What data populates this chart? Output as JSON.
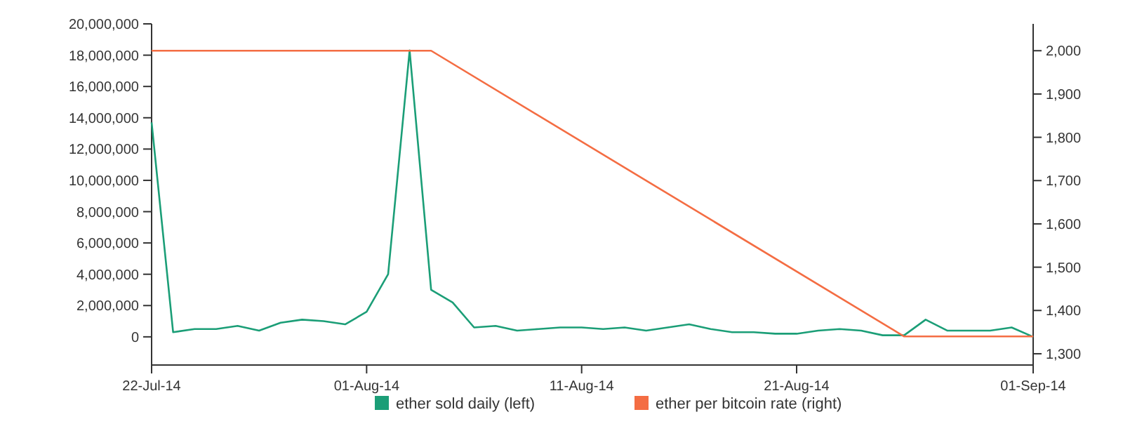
{
  "chart_data": {
    "type": "line",
    "x": [
      "2014-07-22",
      "2014-07-23",
      "2014-07-24",
      "2014-07-25",
      "2014-07-26",
      "2014-07-27",
      "2014-07-28",
      "2014-07-29",
      "2014-07-30",
      "2014-07-31",
      "2014-08-01",
      "2014-08-02",
      "2014-08-03",
      "2014-08-04",
      "2014-08-05",
      "2014-08-06",
      "2014-08-07",
      "2014-08-08",
      "2014-08-09",
      "2014-08-10",
      "2014-08-11",
      "2014-08-12",
      "2014-08-13",
      "2014-08-14",
      "2014-08-15",
      "2014-08-16",
      "2014-08-17",
      "2014-08-18",
      "2014-08-19",
      "2014-08-20",
      "2014-08-21",
      "2014-08-22",
      "2014-08-23",
      "2014-08-24",
      "2014-08-25",
      "2014-08-26",
      "2014-08-27",
      "2014-08-28",
      "2014-08-29",
      "2014-08-30",
      "2014-08-31",
      "2014-09-01"
    ],
    "series": [
      {
        "name": "ether sold daily (left)",
        "color": "#1b9e77",
        "values": [
          13700000,
          300000,
          500000,
          500000,
          700000,
          400000,
          900000,
          1100000,
          1000000,
          800000,
          1600000,
          4000000,
          18300000,
          3000000,
          2200000,
          600000,
          700000,
          400000,
          500000,
          600000,
          600000,
          500000,
          600000,
          400000,
          600000,
          800000,
          500000,
          300000,
          300000,
          200000,
          200000,
          400000,
          500000,
          400000,
          100000,
          100000,
          1100000,
          400000,
          400000,
          400000,
          600000,
          0
        ]
      },
      {
        "name": "ether per bitcoin rate (right)",
        "color": "#f46d43",
        "axis": "y2",
        "x": [
          "2014-07-22",
          "2014-08-04",
          "2014-08-26",
          "2014-09-01"
        ],
        "values": [
          2000,
          2000,
          1340,
          1340
        ]
      }
    ],
    "xlim": [
      "2014-07-22",
      "2014-09-01"
    ],
    "xticks": [
      {
        "value": "2014-07-22",
        "label": "22-Jul-14"
      },
      {
        "value": "2014-08-01",
        "label": "01-Aug-14"
      },
      {
        "value": "2014-08-11",
        "label": "11-Aug-14"
      },
      {
        "value": "2014-08-21",
        "label": "21-Aug-14"
      },
      {
        "value": "2014-09-01",
        "label": "01-Sep-14"
      }
    ],
    "ylim": [
      -1800000,
      20000000
    ],
    "yticks": [
      {
        "value": 0,
        "label": "0"
      },
      {
        "value": 2000000,
        "label": "2,000,000"
      },
      {
        "value": 4000000,
        "label": "4,000,000"
      },
      {
        "value": 6000000,
        "label": "6,000,000"
      },
      {
        "value": 8000000,
        "label": "8,000,000"
      },
      {
        "value": 10000000,
        "label": "10,000,000"
      },
      {
        "value": 12000000,
        "label": "12,000,000"
      },
      {
        "value": 14000000,
        "label": "14,000,000"
      },
      {
        "value": 16000000,
        "label": "16,000,000"
      },
      {
        "value": 18000000,
        "label": "18,000,000"
      },
      {
        "value": 20000000,
        "label": "20,000,000"
      }
    ],
    "y2lim": [
      1274,
      2062
    ],
    "y2ticks": [
      {
        "value": 1300,
        "label": "1,300"
      },
      {
        "value": 1400,
        "label": "1,400"
      },
      {
        "value": 1500,
        "label": "1,500"
      },
      {
        "value": 1600,
        "label": "1,600"
      },
      {
        "value": 1700,
        "label": "1,700"
      },
      {
        "value": 1800,
        "label": "1,800"
      },
      {
        "value": 1900,
        "label": "1,900"
      },
      {
        "value": 2000,
        "label": "2,000"
      }
    ],
    "legend": "bottom",
    "grid": false
  }
}
